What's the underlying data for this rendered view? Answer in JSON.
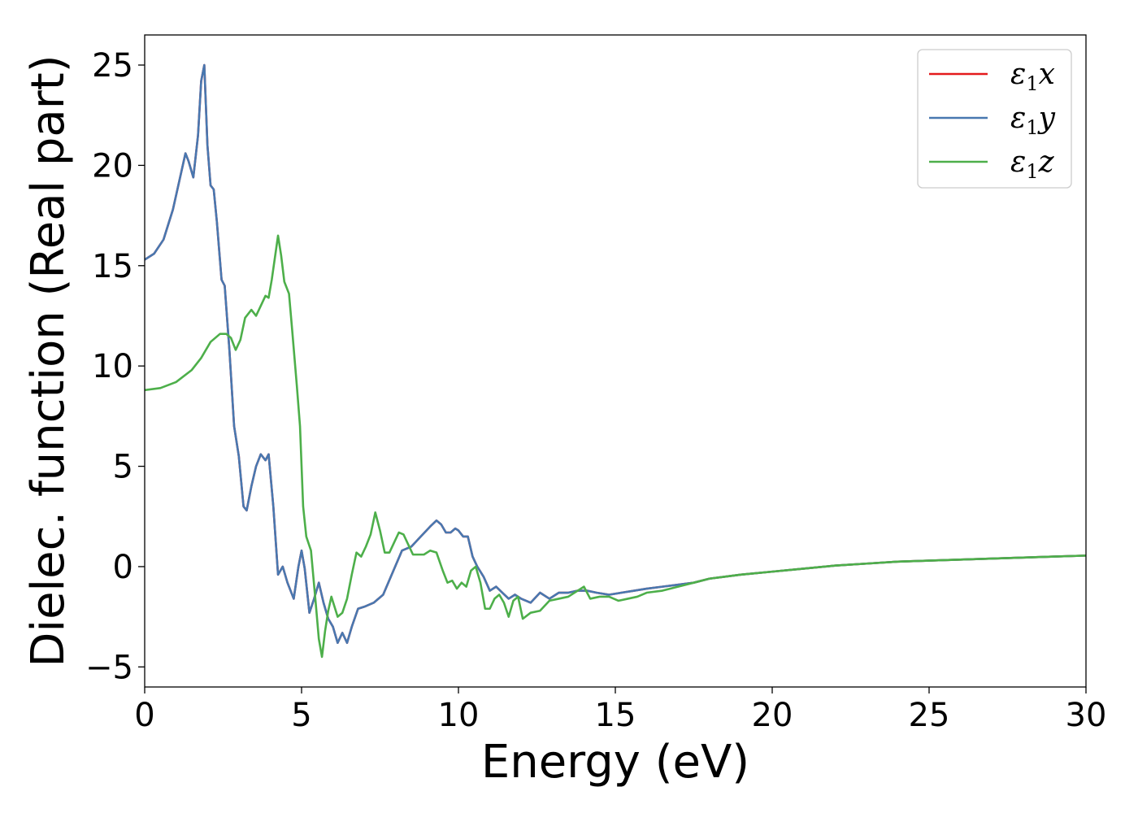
{
  "chart_data": {
    "type": "line",
    "xlabel": "Energy (eV)",
    "ylabel": "Dielec. function (Real part)",
    "xlim": [
      0,
      30
    ],
    "ylim": [
      -6,
      26.5
    ],
    "xticks": [
      0,
      5,
      10,
      15,
      20,
      25,
      30
    ],
    "yticks": [
      -5,
      0,
      5,
      10,
      15,
      20,
      25
    ],
    "xtick_labels": [
      "0",
      "5",
      "10",
      "15",
      "20",
      "25",
      "30"
    ],
    "ytick_labels": [
      "−5",
      "0",
      "5",
      "10",
      "15",
      "20",
      "25"
    ],
    "grid": false,
    "legend_position": "top-right",
    "series": [
      {
        "name": "ε₁x",
        "label_base": "ε",
        "label_sub": "1",
        "label_var": "x",
        "color": "#e41a1c",
        "x": [
          0,
          0.3,
          0.6,
          0.9,
          1.1,
          1.3,
          1.4,
          1.55,
          1.7,
          1.8,
          1.9,
          2.0,
          2.1,
          2.2,
          2.3,
          2.45,
          2.55,
          2.7,
          2.85,
          3.0,
          3.15,
          3.25,
          3.4,
          3.55,
          3.7,
          3.85,
          3.95,
          4.1,
          4.25,
          4.4,
          4.55,
          4.75,
          4.9,
          5.0,
          5.1,
          5.25,
          5.4,
          5.55,
          5.7,
          5.85,
          6.0,
          6.15,
          6.3,
          6.45,
          6.6,
          6.8,
          7.0,
          7.3,
          7.6,
          7.9,
          8.2,
          8.5,
          8.8,
          9.1,
          9.3,
          9.45,
          9.6,
          9.75,
          9.9,
          10.0,
          10.15,
          10.3,
          10.45,
          10.6,
          10.8,
          11.0,
          11.2,
          11.4,
          11.6,
          11.8,
          12.0,
          12.3,
          12.6,
          12.9,
          13.2,
          13.5,
          13.8,
          14.1,
          14.4,
          14.8,
          15.2,
          15.6,
          16.0,
          16.5,
          17.0,
          17.5,
          18.0,
          19.0,
          20.0,
          21.0,
          22.0,
          23.0,
          24.0,
          25.0,
          26.0,
          27.0,
          28.0,
          29.0,
          30.0
        ],
        "y": [
          15.3,
          15.6,
          16.3,
          17.8,
          19.2,
          20.6,
          20.2,
          19.4,
          21.5,
          24.2,
          25.0,
          21.0,
          19.0,
          18.8,
          17.2,
          14.3,
          14.0,
          10.8,
          7.0,
          5.5,
          3.0,
          2.8,
          4.0,
          5.0,
          5.6,
          5.3,
          5.6,
          3.0,
          -0.4,
          0.0,
          -0.8,
          -1.6,
          0.0,
          0.8,
          -0.1,
          -2.3,
          -1.6,
          -0.8,
          -1.8,
          -2.6,
          -3.0,
          -3.8,
          -3.3,
          -3.8,
          -3.0,
          -2.1,
          -2.0,
          -1.8,
          -1.4,
          -0.3,
          0.8,
          1.0,
          1.5,
          2.0,
          2.3,
          2.1,
          1.7,
          1.7,
          1.9,
          1.8,
          1.5,
          1.5,
          0.5,
          0.0,
          -0.5,
          -1.2,
          -1.0,
          -1.3,
          -1.6,
          -1.4,
          -1.6,
          -1.8,
          -1.3,
          -1.6,
          -1.3,
          -1.3,
          -1.2,
          -1.2,
          -1.3,
          -1.4,
          -1.3,
          -1.2,
          -1.1,
          -1.0,
          -0.9,
          -0.8,
          -0.6,
          -0.4,
          -0.25,
          -0.1,
          0.05,
          0.15,
          0.25,
          0.3,
          0.35,
          0.4,
          0.45,
          0.5,
          0.55
        ]
      },
      {
        "name": "ε₁y",
        "label_base": "ε",
        "label_sub": "1",
        "label_var": "y",
        "color": "#4878b0",
        "x": [
          0,
          0.3,
          0.6,
          0.9,
          1.1,
          1.3,
          1.4,
          1.55,
          1.7,
          1.8,
          1.9,
          2.0,
          2.1,
          2.2,
          2.3,
          2.45,
          2.55,
          2.7,
          2.85,
          3.0,
          3.15,
          3.25,
          3.4,
          3.55,
          3.7,
          3.85,
          3.95,
          4.1,
          4.25,
          4.4,
          4.55,
          4.75,
          4.9,
          5.0,
          5.1,
          5.25,
          5.4,
          5.55,
          5.7,
          5.85,
          6.0,
          6.15,
          6.3,
          6.45,
          6.6,
          6.8,
          7.0,
          7.3,
          7.6,
          7.9,
          8.2,
          8.5,
          8.8,
          9.1,
          9.3,
          9.45,
          9.6,
          9.75,
          9.9,
          10.0,
          10.15,
          10.3,
          10.45,
          10.6,
          10.8,
          11.0,
          11.2,
          11.4,
          11.6,
          11.8,
          12.0,
          12.3,
          12.6,
          12.9,
          13.2,
          13.5,
          13.8,
          14.1,
          14.4,
          14.8,
          15.2,
          15.6,
          16.0,
          16.5,
          17.0,
          17.5,
          18.0,
          19.0,
          20.0,
          21.0,
          22.0,
          23.0,
          24.0,
          25.0,
          26.0,
          27.0,
          28.0,
          29.0,
          30.0
        ],
        "y": [
          15.3,
          15.6,
          16.3,
          17.8,
          19.2,
          20.6,
          20.2,
          19.4,
          21.5,
          24.2,
          25.0,
          21.0,
          19.0,
          18.8,
          17.2,
          14.3,
          14.0,
          10.8,
          7.0,
          5.5,
          3.0,
          2.8,
          4.0,
          5.0,
          5.6,
          5.3,
          5.6,
          3.0,
          -0.4,
          0.0,
          -0.8,
          -1.6,
          0.0,
          0.8,
          -0.1,
          -2.3,
          -1.6,
          -0.8,
          -1.8,
          -2.6,
          -3.0,
          -3.8,
          -3.3,
          -3.8,
          -3.0,
          -2.1,
          -2.0,
          -1.8,
          -1.4,
          -0.3,
          0.8,
          1.0,
          1.5,
          2.0,
          2.3,
          2.1,
          1.7,
          1.7,
          1.9,
          1.8,
          1.5,
          1.5,
          0.5,
          0.0,
          -0.5,
          -1.2,
          -1.0,
          -1.3,
          -1.6,
          -1.4,
          -1.6,
          -1.8,
          -1.3,
          -1.6,
          -1.3,
          -1.3,
          -1.2,
          -1.2,
          -1.3,
          -1.4,
          -1.3,
          -1.2,
          -1.1,
          -1.0,
          -0.9,
          -0.8,
          -0.6,
          -0.4,
          -0.25,
          -0.1,
          0.05,
          0.15,
          0.25,
          0.3,
          0.35,
          0.4,
          0.45,
          0.5,
          0.55
        ]
      },
      {
        "name": "ε₁z",
        "label_base": "ε",
        "label_sub": "1",
        "label_var": "z",
        "color": "#4daf4a",
        "x": [
          0,
          0.5,
          1.0,
          1.5,
          1.8,
          2.1,
          2.4,
          2.6,
          2.75,
          2.9,
          3.05,
          3.2,
          3.4,
          3.55,
          3.7,
          3.85,
          3.95,
          4.05,
          4.15,
          4.25,
          4.35,
          4.45,
          4.6,
          4.7,
          4.85,
          4.95,
          5.05,
          5.15,
          5.3,
          5.45,
          5.55,
          5.65,
          5.75,
          5.85,
          5.95,
          6.05,
          6.15,
          6.3,
          6.45,
          6.6,
          6.75,
          6.9,
          7.05,
          7.2,
          7.35,
          7.5,
          7.65,
          7.8,
          7.95,
          8.1,
          8.25,
          8.4,
          8.55,
          8.7,
          8.9,
          9.1,
          9.3,
          9.5,
          9.65,
          9.8,
          9.95,
          10.1,
          10.25,
          10.4,
          10.55,
          10.7,
          10.85,
          11.0,
          11.15,
          11.3,
          11.45,
          11.6,
          11.75,
          11.9,
          12.05,
          12.3,
          12.6,
          12.9,
          13.2,
          13.5,
          13.8,
          14.0,
          14.2,
          14.5,
          14.8,
          15.1,
          15.4,
          15.7,
          16.0,
          16.5,
          17.0,
          17.5,
          18.0,
          19.0,
          20.0,
          21.0,
          22.0,
          23.0,
          24.0,
          25.0,
          26.0,
          27.0,
          28.0,
          29.0,
          30.0
        ],
        "y": [
          8.8,
          8.9,
          9.2,
          9.8,
          10.4,
          11.2,
          11.6,
          11.6,
          11.4,
          10.8,
          11.3,
          12.4,
          12.8,
          12.5,
          13.0,
          13.5,
          13.4,
          14.3,
          15.4,
          16.5,
          15.5,
          14.2,
          13.6,
          11.8,
          9.0,
          7.0,
          3.0,
          1.5,
          0.8,
          -1.8,
          -3.6,
          -4.5,
          -3.2,
          -2.2,
          -1.5,
          -2.0,
          -2.5,
          -2.3,
          -1.6,
          -0.4,
          0.7,
          0.5,
          1.0,
          1.6,
          2.7,
          1.8,
          0.7,
          0.7,
          1.2,
          1.7,
          1.6,
          1.1,
          0.6,
          0.6,
          0.6,
          0.8,
          0.7,
          -0.2,
          -0.8,
          -0.7,
          -1.1,
          -0.8,
          -1.0,
          -0.2,
          0.0,
          -0.8,
          -2.1,
          -2.1,
          -1.6,
          -1.4,
          -1.8,
          -2.5,
          -1.7,
          -1.5,
          -2.6,
          -2.3,
          -2.2,
          -1.7,
          -1.6,
          -1.5,
          -1.2,
          -1.0,
          -1.6,
          -1.5,
          -1.5,
          -1.7,
          -1.6,
          -1.5,
          -1.3,
          -1.2,
          -1.0,
          -0.8,
          -0.6,
          -0.4,
          -0.25,
          -0.1,
          0.05,
          0.15,
          0.25,
          0.3,
          0.35,
          0.4,
          0.45,
          0.5,
          0.55
        ]
      }
    ]
  }
}
